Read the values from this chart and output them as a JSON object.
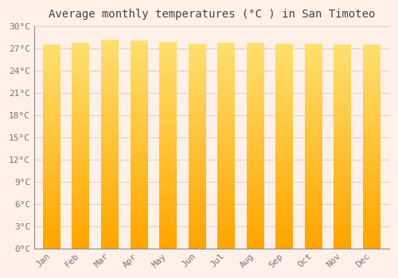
{
  "title": "Average monthly temperatures (°C ) in San Timoteo",
  "months": [
    "Jan",
    "Feb",
    "Mar",
    "Apr",
    "May",
    "Jun",
    "Jul",
    "Aug",
    "Sep",
    "Oct",
    "Nov",
    "Dec"
  ],
  "temperatures": [
    27.5,
    27.8,
    28.2,
    28.1,
    27.9,
    27.7,
    27.8,
    27.8,
    27.7,
    27.6,
    27.5,
    27.5
  ],
  "ylim": [
    0,
    30
  ],
  "yticks": [
    0,
    3,
    6,
    9,
    12,
    15,
    18,
    21,
    24,
    27,
    30
  ],
  "bar_color_bottom": "#FFA500",
  "bar_color_top": "#FFE070",
  "background_color": "#FFF0E8",
  "plot_bg_color": "#FFF0E8",
  "grid_color": "#DDCCCC",
  "title_fontsize": 10,
  "tick_fontsize": 8,
  "title_color": "#444444",
  "tick_color": "#777777"
}
